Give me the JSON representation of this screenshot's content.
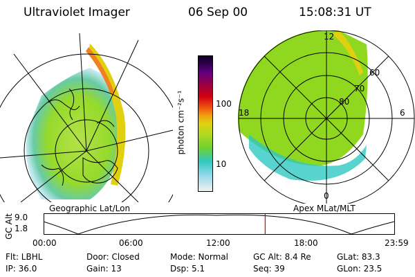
{
  "header": {
    "instrument": "Ultraviolet Imager",
    "date": "06 Sep 00",
    "time": "15:08:31 UT"
  },
  "colorbar": {
    "unit": "photon cm⁻²s⁻¹",
    "ticks": [
      "100",
      "10"
    ]
  },
  "left_panel": {
    "caption": "Geographic Lat/Lon"
  },
  "right_panel": {
    "caption": "Apex MLat/MLT",
    "mlt_labels": {
      "top": "12",
      "left": "18",
      "right": "6",
      "bottom": "0"
    },
    "lat_labels": [
      "60",
      "70",
      "80"
    ]
  },
  "altitude_plot": {
    "ylabel": "GC Alt",
    "yticks": [
      "9.0",
      "1.8"
    ],
    "xticks": [
      "00:00",
      "06:00",
      "12:00",
      "18:00",
      "23:59"
    ],
    "marker_fraction": 0.632
  },
  "footer": {
    "row1": {
      "filter": "Flt: LBHL",
      "door": "Door: Closed",
      "mode": "Mode: Normal",
      "gc_alt": "GC Alt: 8.4 Re",
      "glat": "GLat: 83.3"
    },
    "row2": {
      "ip": "IP: 36.0",
      "gain": "Gain: 13",
      "dsp": "Dsp: 5.1",
      "seq": "Seq: 39",
      "glon": "GLon: 23.5"
    }
  },
  "colors": {
    "aurora_bright": "#e0d010",
    "aurora_mid": "#90d820",
    "aurora_low": "#30c8c0",
    "marker": "#e00000"
  }
}
